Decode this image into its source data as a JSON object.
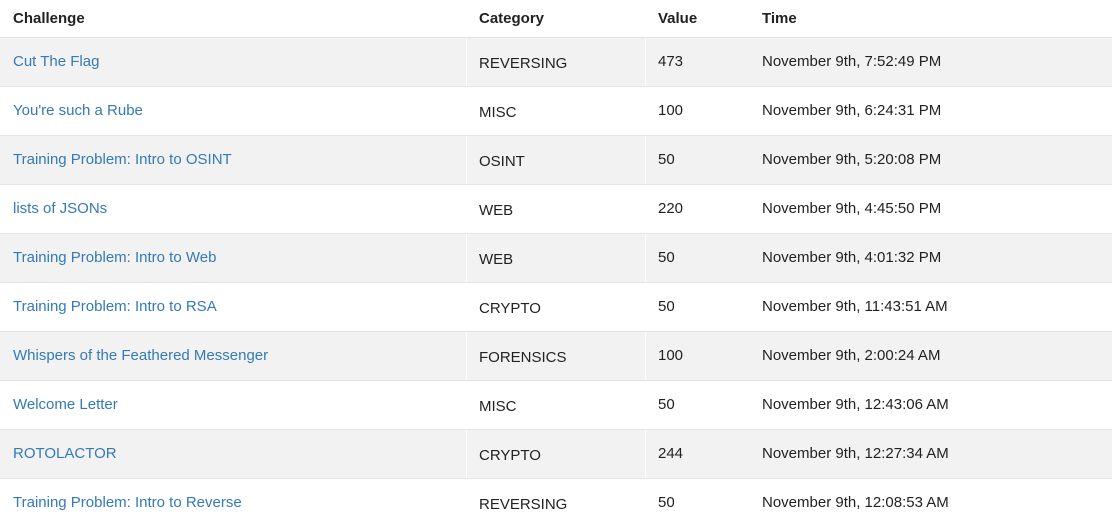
{
  "headers": {
    "challenge": "Challenge",
    "category": "Category",
    "value": "Value",
    "time": "Time"
  },
  "colors": {
    "link": "#337ab7",
    "stripe": "#f2f2f2"
  },
  "rows": [
    {
      "challenge": "Cut The Flag",
      "category": "REVERSING",
      "value": "473",
      "time": "November 9th, 7:52:49 PM"
    },
    {
      "challenge": "You're such a Rube",
      "category": "MISC",
      "value": "100",
      "time": "November 9th, 6:24:31 PM"
    },
    {
      "challenge": "Training Problem: Intro to OSINT",
      "category": "OSINT",
      "value": "50",
      "time": "November 9th, 5:20:08 PM"
    },
    {
      "challenge": "lists of JSONs",
      "category": "WEB",
      "value": "220",
      "time": "November 9th, 4:45:50 PM"
    },
    {
      "challenge": "Training Problem: Intro to Web",
      "category": "WEB",
      "value": "50",
      "time": "November 9th, 4:01:32 PM"
    },
    {
      "challenge": "Training Problem: Intro to RSA",
      "category": "CRYPTO",
      "value": "50",
      "time": "November 9th, 11:43:51 AM"
    },
    {
      "challenge": "Whispers of the Feathered Messenger",
      "category": "FORENSICS",
      "value": "100",
      "time": "November 9th, 2:00:24 AM"
    },
    {
      "challenge": "Welcome Letter",
      "category": "MISC",
      "value": "50",
      "time": "November 9th, 12:43:06 AM"
    },
    {
      "challenge": "ROTOLACTOR",
      "category": "CRYPTO",
      "value": "244",
      "time": "November 9th, 12:27:34 AM"
    },
    {
      "challenge": "Training Problem: Intro to Reverse",
      "category": "REVERSING",
      "value": "50",
      "time": "November 9th, 12:08:53 AM"
    }
  ]
}
